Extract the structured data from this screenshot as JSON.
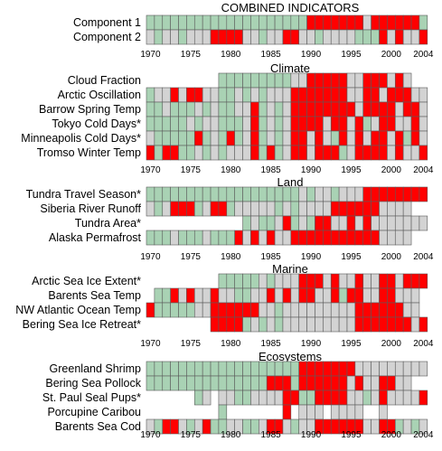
{
  "chart_data": {
    "type": "heatmap",
    "title": "COMBINED INDICATORS",
    "years": [
      1970,
      1971,
      1972,
      1973,
      1974,
      1975,
      1976,
      1977,
      1978,
      1979,
      1980,
      1981,
      1982,
      1983,
      1984,
      1985,
      1986,
      1987,
      1988,
      1989,
      1990,
      1991,
      1992,
      1993,
      1994,
      1995,
      1996,
      1997,
      1998,
      1999,
      2000,
      2001,
      2002,
      2003,
      2004
    ],
    "tick_labels": [
      "1970",
      "1975",
      "1980",
      "1985",
      "1990",
      "1995",
      "2000",
      "2004"
    ],
    "legend": {
      "R": "#ff0000",
      "G": "#a9d2b4",
      "X": "#d3d3d3",
      "W": "#ffffff"
    },
    "panels": [
      {
        "title": "COMBINED INDICATORS",
        "rows": [
          {
            "label": "Component 1",
            "cells": "GGGGGGGGGGGGGGGGGGGGRRRRRRRXRRRRRRG"
          },
          {
            "label": "Component 2",
            "cells": "XGXXGXXXRRRRXXGXXRRXXGXXXXGGGRXRXXR"
          }
        ]
      },
      {
        "title": "Climate",
        "rows": [
          {
            "label": "Cloud Fraction",
            "cells": "WWWWWWWWWGGGGGGGGGXXRRRRRXXRRRXRXWW"
          },
          {
            "label": "Arctic Oscillation",
            "cells": "GXXRXRRXXGGXGXGXXXRRRRRRRXXRRXRRRXX"
          },
          {
            "label": "Barrow Spring Temp",
            "cells": "GGXGGGXGXGGXXRGXGXRRRRRRRRXRRRRXRRX"
          },
          {
            "label": "Tokyo Cold Days*",
            "cells": "GGGGGXGXXGGGXRGXGXRRRRXRRXRGXRRXXRX"
          },
          {
            "label": "Minneapolis Cold Days*",
            "cells": "XGGGGGRGXGRGXRGXGXRRXRXGRXRXRRXRGRX"
          },
          {
            "label": "Tromso Winter Temp",
            "cells": "RGRRGGXGXGXXXRGRGXRRXRRRGXRRRRXRXXR"
          }
        ]
      },
      {
        "title": "Land",
        "rows": [
          {
            "label": "Tundra Travel Season*",
            "cells": "GGGGGGGGGGGGGGGGGGGXGXXGXXXRRRRRRRR"
          },
          {
            "label": "Siberia River Runoff",
            "cells": "XGXRRRGXRRGXXXXXGXGXXXXRRRRRRXXXXWW"
          },
          {
            "label": "Tundra Area*",
            "cells": "WWWWWWWWWWWWGXGGXRGXGRRXXRXRXXXXXXX"
          },
          {
            "label": "Alaska Permafrost",
            "cells": "GGGXGGGXGGGRXRXRXXRRRRRRRRRRRXXXXWW"
          }
        ]
      },
      {
        "title": "Marine",
        "rows": [
          {
            "label": "Arctic Sea Ice Extent*",
            "cells": "WWWWWWWWWGGGGGXGXXXRRRXRXXRXXRRXRRR"
          },
          {
            "label": "Barents Sea Temp",
            "cells": "WGGRXRXXRXXGGXXRXRXRRXXRGRRXXRRXXXW"
          },
          {
            "label": "NW Atlantic Ocean Temp",
            "cells": "RGGGGGXXRRRRRRXXGXXXXXXXXXRRRRRRXXW"
          },
          {
            "label": "Bering Sea Ice Retreat*",
            "cells": "WWWWWWWWRRRRGXGXGXXXXXXXXXRRRRRRRXR"
          }
        ]
      },
      {
        "title": "Ecosystems",
        "rows": [
          {
            "label": "Greenland Shrimp",
            "cells": "GGGGGGGGGGGGGGGGGGGRRRRRRRXXXXXXXXX"
          },
          {
            "label": "Bering Sea Pollock",
            "cells": "GGGGGGGGGGGGGGGRRRGRRRRRRXRXXRRXXWW"
          },
          {
            "label": "St. Paul Seal Pups*",
            "cells": "WWWWWWGXWXXGGXXXXRRGGRRRRXXGXRXXXXR"
          },
          {
            "label": "Porcupine Caribou",
            "cells": "WWWWWWWWWGWWWWWWWRWXXXWXXXXWWXWWWWW"
          },
          {
            "label": "Barents Sea Cod",
            "cells": "XGRRXGXRGGXXGGXRRXGXXRRRRRRXXRRGXGX"
          }
        ]
      }
    ]
  }
}
